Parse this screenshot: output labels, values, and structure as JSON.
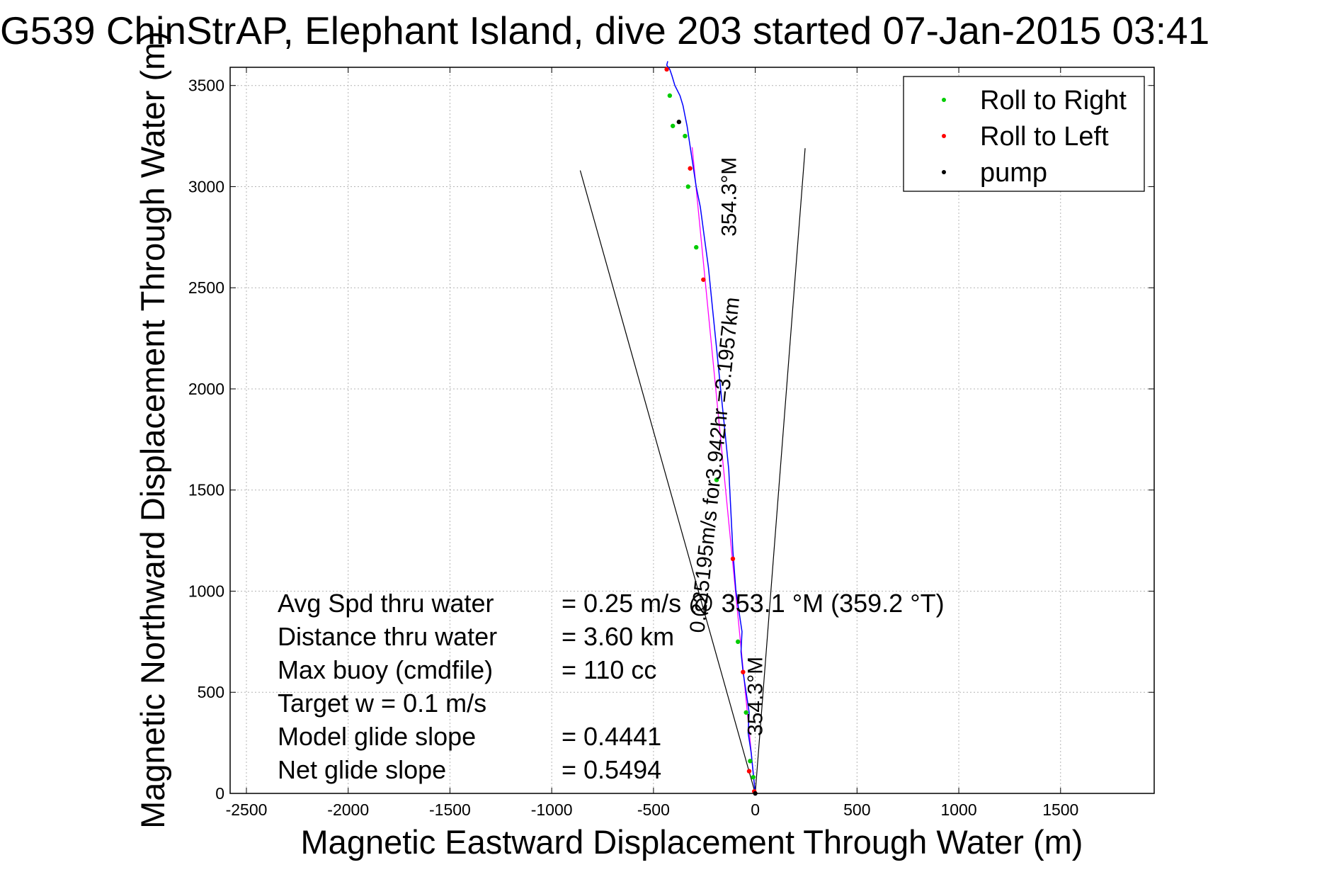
{
  "chart_data": {
    "type": "line",
    "title": "G539 ChinStrAP, Elephant Island, dive 203 started 07-Jan-2015 03:41",
    "xlabel": "Magnetic Eastward Displacement Through Water (m)",
    "ylabel": "Magnetic Northward Displacement Through Water (m)",
    "xlim": [
      -2580,
      1960
    ],
    "ylim": [
      0,
      3590
    ],
    "xticks": [
      -2500,
      -2000,
      -1500,
      -1000,
      -500,
      0,
      500,
      1000,
      1500
    ],
    "yticks": [
      0,
      500,
      1000,
      1500,
      2000,
      2500,
      3000,
      3500
    ],
    "grid": true,
    "legend_position": "top-right",
    "legend": [
      {
        "label": "Roll to Right",
        "color": "#00cc00"
      },
      {
        "label": "Roll to Left",
        "color": "#ff0000"
      },
      {
        "label": "pump",
        "color": "#000000"
      }
    ],
    "track_color": "#0000ff",
    "fit_color": "#ff00ff",
    "series": [
      {
        "name": "track",
        "x": [
          0,
          -10,
          -20,
          -35,
          -30,
          -45,
          -60,
          -70,
          -65,
          -80,
          -95,
          -110,
          -120,
          -130,
          -150,
          -170,
          -190,
          -210,
          -230,
          -250,
          -270,
          -290,
          -305,
          -320,
          -335,
          -345,
          -355,
          -370,
          -395,
          -410,
          -420,
          -435,
          -430
        ],
        "y": [
          0,
          100,
          200,
          300,
          400,
          500,
          600,
          700,
          800,
          900,
          1000,
          1200,
          1400,
          1600,
          1800,
          2000,
          2200,
          2400,
          2600,
          2750,
          2900,
          3000,
          3100,
          3200,
          3300,
          3350,
          3400,
          3450,
          3500,
          3550,
          3580,
          3600,
          3620
        ]
      },
      {
        "name": "roll-right",
        "x": [
          -10,
          -25,
          -45,
          -85,
          -190,
          -290,
          -330,
          -345,
          -405,
          -420
        ],
        "y": [
          80,
          160,
          400,
          750,
          1550,
          2700,
          3000,
          3250,
          3300,
          3450
        ],
        "marker": "#00cc00"
      },
      {
        "name": "roll-left",
        "x": [
          -5,
          -30,
          -60,
          -110,
          -255,
          -320,
          -435
        ],
        "y": [
          10,
          110,
          600,
          1160,
          2540,
          3090,
          3580
        ],
        "marker": "#ff0000"
      },
      {
        "name": "pump",
        "x": [
          0,
          -375
        ],
        "y": [
          0,
          3320
        ],
        "marker": "#000000"
      }
    ],
    "fit_line": {
      "x": [
        0,
        -310
      ],
      "y": [
        0,
        3195
      ]
    },
    "envelope_lines": [
      {
        "x": [
          0,
          -860
        ],
        "y": [
          0,
          3080
        ]
      },
      {
        "x": [
          0,
          245
        ],
        "y": [
          0,
          3190
        ]
      }
    ],
    "annotations": [
      {
        "text": "354.3°M",
        "x": -95,
        "y": 2950,
        "angle": -90
      },
      {
        "text": "0.225195m/s for3.942hr =3.1957km",
        "x": -165,
        "y": 1620,
        "angle": -84
      },
      {
        "text": "354.3°M",
        "x": 35,
        "y": 480,
        "angle": -90
      }
    ],
    "stats": [
      {
        "label": "Avg Spd thru water",
        "value": "=  0.25 m/s @  353.1 °M (359.2 °T)"
      },
      {
        "label": "Distance thru water",
        "value": "=  3.60 km"
      },
      {
        "label": "Max buoy (cmdfile)",
        "value": "= 110 cc"
      },
      {
        "label": "Target w    = 0.1 m/s",
        "value": ""
      },
      {
        "label": "Model glide slope",
        "value": "= 0.4441"
      },
      {
        "label": "Net glide slope",
        "value": "= 0.5494"
      }
    ]
  }
}
